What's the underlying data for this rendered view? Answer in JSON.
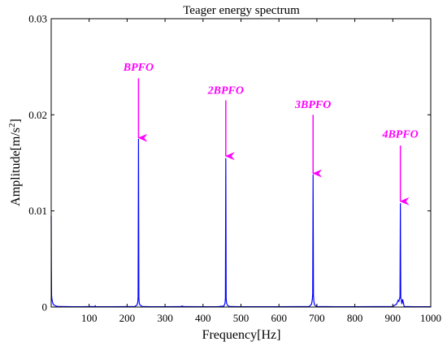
{
  "chart_data": {
    "type": "line",
    "title": "Teager energy spectrum",
    "xlabel": "Frequency[Hz]",
    "ylabel_prefix": "Amplitude[m/s",
    "ylabel_sup": "2",
    "ylabel_suffix": "]",
    "xlim": [
      0,
      1000
    ],
    "ylim": [
      0,
      0.03
    ],
    "xticks": [
      100,
      200,
      300,
      400,
      500,
      600,
      700,
      800,
      900,
      1000
    ],
    "xtick_labels": [
      "100",
      "200",
      "300",
      "400",
      "500",
      "600",
      "700",
      "800",
      "900",
      "1000"
    ],
    "yticks": [
      0,
      0.01,
      0.02,
      0.03
    ],
    "ytick_labels": [
      "0",
      "0.01",
      "0.02",
      "0.03"
    ],
    "grid": false,
    "colors": {
      "line": "#0000ff",
      "annotation": "#ff00ff",
      "axes": "#000000"
    },
    "series": [
      {
        "x": [
          0,
          0.5,
          1,
          2,
          3,
          5,
          8,
          12,
          20,
          40,
          60,
          80,
          100,
          115,
          116,
          117,
          130,
          160,
          200,
          220,
          226,
          228,
          229,
          230,
          231,
          232,
          234,
          240,
          260,
          300,
          340,
          345,
          350,
          400,
          440,
          455,
          458,
          459,
          460,
          461,
          462,
          465,
          470,
          500,
          550,
          600,
          650,
          680,
          686,
          688,
          689,
          690,
          691,
          692,
          694,
          700,
          750,
          800,
          850,
          900,
          910,
          914,
          916,
          918,
          919,
          920,
          921,
          922,
          924,
          926,
          930,
          960,
          1000
        ],
        "y": [
          0.0095,
          0.004,
          0.0012,
          0.0008,
          0.0006,
          0.0003,
          0.0002,
          0.0001,
          5e-05,
          4e-05,
          3e-05,
          3e-05,
          4e-05,
          4e-05,
          0.00012,
          4e-05,
          3e-05,
          3e-05,
          4e-05,
          5e-05,
          0.0002,
          0.0005,
          0.001,
          0.0175,
          0.001,
          0.0004,
          0.0002,
          6e-05,
          3e-05,
          3e-05,
          4e-05,
          0.0001,
          4e-05,
          3e-05,
          4e-05,
          0.0001,
          0.0004,
          0.0009,
          0.0155,
          0.0009,
          0.0004,
          0.00015,
          5e-05,
          3e-05,
          3e-05,
          3e-05,
          4e-05,
          6e-05,
          0.0003,
          0.0008,
          0.0014,
          0.0138,
          0.0012,
          0.0006,
          0.0002,
          5e-05,
          3e-05,
          3e-05,
          4e-05,
          6e-05,
          0.0003,
          0.0007,
          0.0006,
          0.0009,
          0.0011,
          0.0108,
          0.0009,
          0.0008,
          0.0003,
          0.0008,
          6e-05,
          3e-05,
          3e-05
        ]
      }
    ],
    "annotations": [
      {
        "label": "BPFO",
        "x": 230,
        "y_text": 0.0246,
        "y_tail": 0.0238,
        "y_head": 0.0176
      },
      {
        "label": "2BPFO",
        "x": 460,
        "y_text": 0.0222,
        "y_tail": 0.0215,
        "y_head": 0.0157
      },
      {
        "label": "3BPFO",
        "x": 690,
        "y_text": 0.0207,
        "y_tail": 0.02,
        "y_head": 0.0139
      },
      {
        "label": "4BPFO",
        "x": 920,
        "y_text": 0.0176,
        "y_tail": 0.0168,
        "y_head": 0.011
      }
    ]
  }
}
